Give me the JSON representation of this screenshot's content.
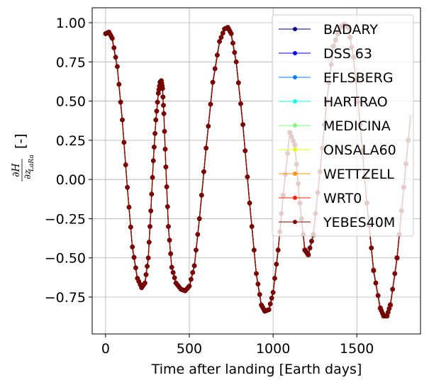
{
  "chart_data": {
    "type": "line",
    "xlabel": "Time after landing [Earth days]",
    "ylabel_main": "∂H",
    "ylabel_den_base": "∂z",
    "ylabel_den_sub": "LaRa",
    "ylabel_unit": "[-]",
    "xlim": [
      -80,
      1880
    ],
    "ylim": [
      -0.985,
      1.095
    ],
    "x_ticks": [
      0,
      500,
      1000,
      1500
    ],
    "x_tick_labels": [
      "0",
      "500",
      "1000",
      "1500"
    ],
    "y_ticks": [
      -0.75,
      -0.5,
      -0.25,
      0.0,
      0.25,
      0.5,
      0.75,
      1.0
    ],
    "y_tick_labels": [
      "−0.75",
      "−0.50",
      "−0.25",
      "0.00",
      "0.25",
      "0.50",
      "0.75",
      "1.00"
    ],
    "grid": true,
    "legend_position": "upper-right",
    "series": [
      {
        "name": "BADARY",
        "color": "#00007f"
      },
      {
        "name": "DSS 63",
        "color": "#0000ff"
      },
      {
        "name": "EFLSBERG",
        "color": "#0080ff"
      },
      {
        "name": "HARTRAO",
        "color": "#15ffe1"
      },
      {
        "name": "MEDICINA",
        "color": "#7cff79"
      },
      {
        "name": "ONSALA60",
        "color": "#e4ff12"
      },
      {
        "name": "WETTZELL",
        "color": "#ff9400"
      },
      {
        "name": "WRT0",
        "color": "#ff1e00"
      },
      {
        "name": "YEBES40M",
        "color": "#7f0000"
      }
    ],
    "trace": {
      "x": [
        0,
        20,
        40,
        70,
        100,
        130,
        160,
        190,
        215,
        235,
        255,
        270,
        285,
        300,
        315,
        325,
        333,
        340,
        348,
        360,
        375,
        395,
        420,
        450,
        475,
        500,
        530,
        560,
        600,
        640,
        680,
        710,
        730,
        750,
        780,
        820,
        860,
        900,
        930,
        950,
        975,
        1000,
        1030,
        1060,
        1100,
        1130,
        1160,
        1190,
        1210,
        1240,
        1280,
        1320,
        1360,
        1400,
        1425,
        1450,
        1480,
        1520,
        1560,
        1600,
        1640,
        1660,
        1680,
        1700,
        1740,
        1780,
        1820
      ],
      "y": [
        0.93,
        0.94,
        0.9,
        0.72,
        0.38,
        -0.05,
        -0.43,
        -0.63,
        -0.69,
        -0.66,
        -0.5,
        -0.2,
        0.12,
        0.38,
        0.55,
        0.62,
        0.63,
        0.58,
        0.42,
        0.08,
        -0.3,
        -0.56,
        -0.66,
        -0.7,
        -0.71,
        -0.68,
        -0.55,
        -0.25,
        0.2,
        0.62,
        0.88,
        0.96,
        0.97,
        0.93,
        0.75,
        0.35,
        -0.15,
        -0.6,
        -0.8,
        -0.84,
        -0.83,
        -0.72,
        -0.45,
        -0.1,
        0.3,
        0.22,
        -0.15,
        -0.45,
        -0.48,
        -0.35,
        0.05,
        0.5,
        0.85,
        0.97,
        0.99,
        0.97,
        0.78,
        0.35,
        -0.15,
        -0.58,
        -0.82,
        -0.87,
        -0.87,
        -0.8,
        -0.5,
        -0.05,
        0.4
      ]
    },
    "overlay_color": "#e8c8c8"
  }
}
